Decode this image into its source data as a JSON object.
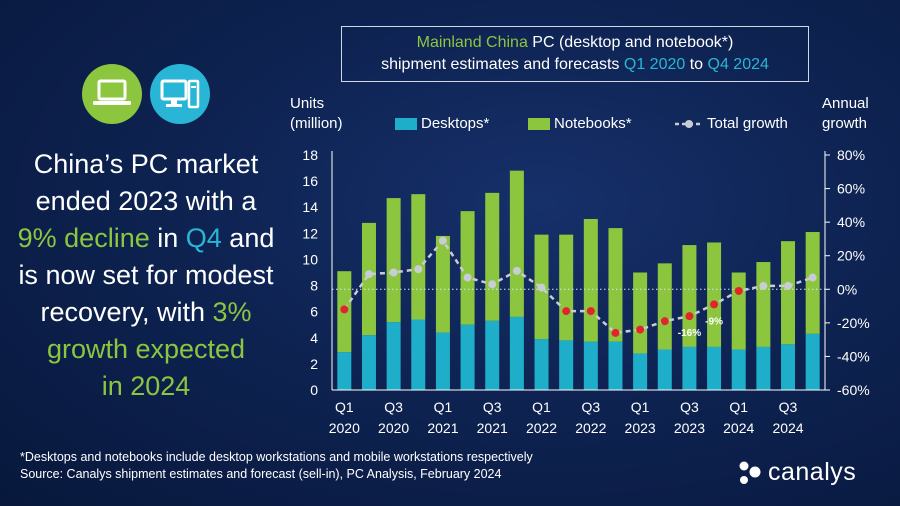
{
  "headline": {
    "line1": "China’s PC market",
    "line2": "ended 2023 with a",
    "line3_highlight": "9% decline",
    "line3_mid": " in ",
    "line3_quarter": "Q4",
    "line3_end": " and",
    "line4": "is now set for modest",
    "line5_start": "recovery, with ",
    "line5_highlight": "3%",
    "line6": "growth expected",
    "line7": "in 2024"
  },
  "title": {
    "region": "Mainland China",
    "line1_rest": " PC (desktop and notebook*)",
    "line2_start": "shipment estimates and forecasts ",
    "from": "Q1 2020",
    "to_word": " to ",
    "to": "Q4 2024"
  },
  "axes": {
    "left_title_1": "Units",
    "left_title_2": "(million)",
    "right_title_1": "Annual",
    "right_title_2": "growth"
  },
  "legend": {
    "desktops": "Desktops*",
    "notebooks": "Notebooks*",
    "growth": "Total growth"
  },
  "colors": {
    "desktops": "#1eaec9",
    "notebooks": "#8cc63f",
    "growth_negative": "#e0262b",
    "growth_positive": "#c8ccd4"
  },
  "chart_data": {
    "type": "bar",
    "stacked": true,
    "categories": [
      "Q1 2020",
      "Q2 2020",
      "Q3 2020",
      "Q4 2020",
      "Q1 2021",
      "Q2 2021",
      "Q3 2021",
      "Q4 2021",
      "Q1 2022",
      "Q2 2022",
      "Q3 2022",
      "Q4 2022",
      "Q1 2023",
      "Q2 2023",
      "Q3 2023",
      "Q4 2023",
      "Q1 2024",
      "Q2 2024",
      "Q3 2024",
      "Q4 2024"
    ],
    "x_tick_labels": [
      {
        "index": 0,
        "quarter": "Q1",
        "year": "2020"
      },
      {
        "index": 2,
        "quarter": "Q3",
        "year": "2020"
      },
      {
        "index": 4,
        "quarter": "Q1",
        "year": "2021"
      },
      {
        "index": 6,
        "quarter": "Q3",
        "year": "2021"
      },
      {
        "index": 8,
        "quarter": "Q1",
        "year": "2022"
      },
      {
        "index": 10,
        "quarter": "Q3",
        "year": "2022"
      },
      {
        "index": 12,
        "quarter": "Q1",
        "year": "2023"
      },
      {
        "index": 14,
        "quarter": "Q3",
        "year": "2023"
      },
      {
        "index": 16,
        "quarter": "Q1",
        "year": "2024"
      },
      {
        "index": 18,
        "quarter": "Q3",
        "year": "2024"
      }
    ],
    "series": [
      {
        "name": "Desktops*",
        "values": [
          2.9,
          4.2,
          5.2,
          5.4,
          4.4,
          5.0,
          5.3,
          5.6,
          3.9,
          3.8,
          3.7,
          3.7,
          2.8,
          3.1,
          3.3,
          3.3,
          3.1,
          3.3,
          3.5,
          4.3
        ]
      },
      {
        "name": "Notebooks*",
        "values": [
          6.2,
          8.6,
          9.5,
          9.6,
          7.4,
          8.7,
          9.8,
          11.2,
          8.0,
          8.1,
          9.4,
          8.7,
          6.2,
          6.6,
          7.8,
          8.0,
          5.9,
          6.5,
          7.9,
          7.8
        ]
      },
      {
        "name": "Total growth",
        "axis": "right",
        "values": [
          -12,
          9,
          10,
          12,
          29,
          7,
          3,
          11,
          1,
          -13,
          -13,
          -26,
          -24,
          -19,
          -16,
          -9,
          -1,
          2,
          2,
          7
        ]
      }
    ],
    "point_labels": [
      {
        "index": 14,
        "text": "-16%"
      },
      {
        "index": 15,
        "text": "-9%"
      }
    ],
    "ylim": [
      0,
      18
    ],
    "y_ticks": [
      0,
      2,
      4,
      6,
      8,
      10,
      12,
      14,
      16,
      18
    ],
    "y2lim": [
      -60,
      80
    ],
    "y2_ticks": [
      -60,
      -40,
      -20,
      0,
      20,
      40,
      60,
      80
    ],
    "y2_tick_labels": [
      "-60%",
      "-40%",
      "-20%",
      "0%",
      "20%",
      "40%",
      "60%",
      "80%"
    ]
  },
  "footnote": {
    "line1": "*Desktops and notebooks  include desktop workstations and mobile workstations respectively",
    "line2": "Source:  Canalys shipment estimates and forecast (sell-in), PC Analysis, February 2024"
  },
  "brand": "canalys"
}
